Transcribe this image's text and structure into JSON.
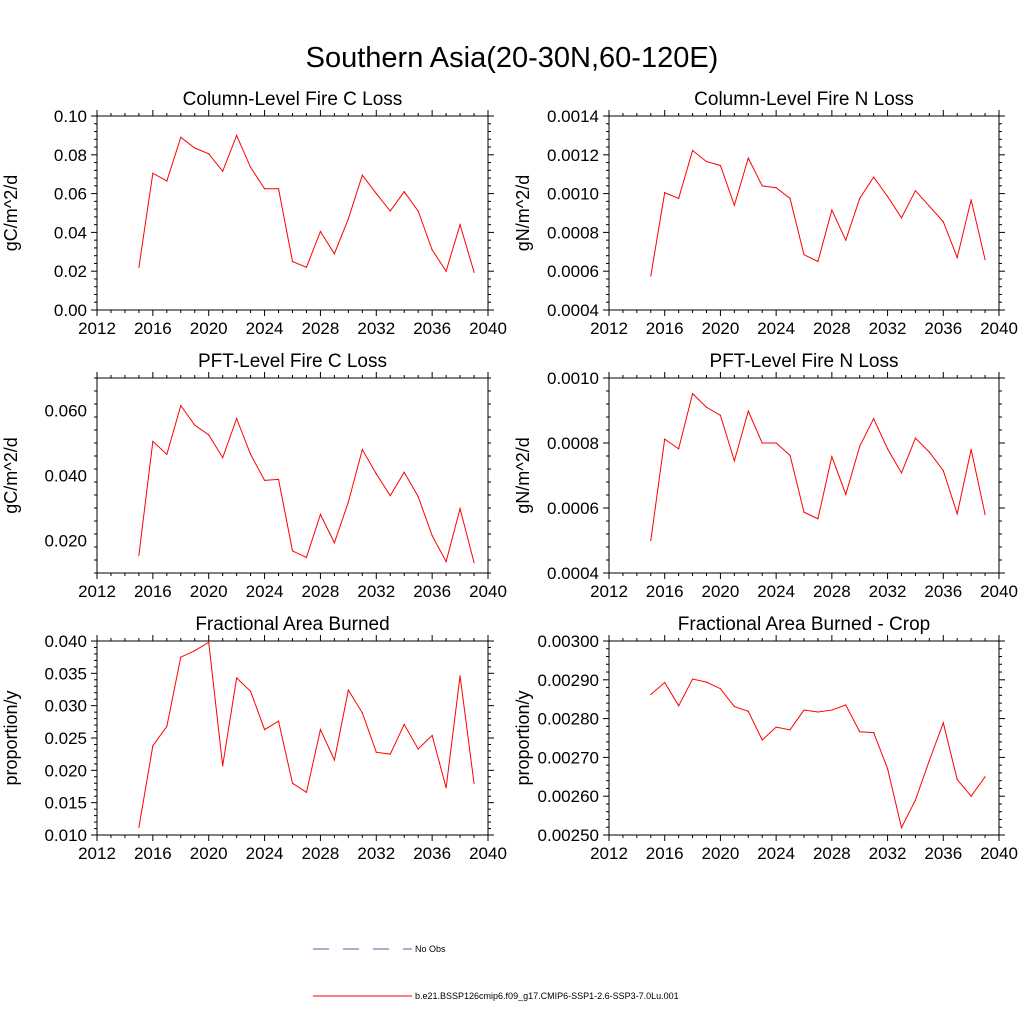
{
  "figure": {
    "title": "Southern Asia(20-30N,60-120E)"
  },
  "legend": {
    "items": [
      {
        "label": "No Obs",
        "color": "#5a5aa8",
        "style": "dashed"
      },
      {
        "label": "b.e21.BSSP126cmip6.f09_g17.CMIP6-SSP1-2.6-SSP3-7.0Lu.001",
        "color": "#ff0000",
        "style": "solid"
      }
    ]
  },
  "chart_data": [
    {
      "type": "line",
      "title": "Column-Level Fire C Loss",
      "ylabel": "gC/m^2/d",
      "xlim": [
        2012,
        2040
      ],
      "xticks": [
        2012,
        2016,
        2020,
        2024,
        2028,
        2032,
        2036,
        2040
      ],
      "ylim": [
        0.0,
        0.1
      ],
      "yticks": [
        0.0,
        0.02,
        0.04,
        0.06,
        0.08,
        0.1
      ],
      "ytick_labels": [
        "0.00",
        "0.02",
        "0.04",
        "0.06",
        "0.08",
        "0.10"
      ],
      "x": [
        2015,
        2016,
        2017,
        2018,
        2019,
        2020,
        2021,
        2022,
        2023,
        2024,
        2025,
        2026,
        2027,
        2028,
        2029,
        2030,
        2031,
        2032,
        2033,
        2034,
        2035,
        2036,
        2037,
        2038,
        2039
      ],
      "series": [
        {
          "color": "#ff0000",
          "values": [
            0.022,
            0.0705,
            0.0665,
            0.089,
            0.0835,
            0.0805,
            0.0715,
            0.09,
            0.0735,
            0.0625,
            0.0625,
            0.025,
            0.022,
            0.0405,
            0.029,
            0.047,
            0.0695,
            0.06,
            0.051,
            0.061,
            0.051,
            0.031,
            0.02,
            0.044,
            0.0195
          ]
        }
      ]
    },
    {
      "type": "line",
      "title": "Column-Level Fire N Loss",
      "ylabel": "gN/m^2/d",
      "xlim": [
        2012,
        2040
      ],
      "xticks": [
        2012,
        2016,
        2020,
        2024,
        2028,
        2032,
        2036,
        2040
      ],
      "ylim": [
        0.0004,
        0.0014
      ],
      "yticks": [
        0.0004,
        0.0006,
        0.0008,
        0.001,
        0.0012,
        0.0014
      ],
      "ytick_labels": [
        "0.0004",
        "0.0006",
        "0.0008",
        "0.0010",
        "0.0012",
        "0.0014"
      ],
      "x": [
        2015,
        2016,
        2017,
        2018,
        2019,
        2020,
        2021,
        2022,
        2023,
        2024,
        2025,
        2026,
        2027,
        2028,
        2029,
        2030,
        2031,
        2032,
        2033,
        2034,
        2035,
        2036,
        2037,
        2038,
        2039
      ],
      "series": [
        {
          "color": "#ff0000",
          "values": [
            0.000575,
            0.001005,
            0.000975,
            0.001222,
            0.001165,
            0.001145,
            0.00094,
            0.001183,
            0.00104,
            0.00103,
            0.000975,
            0.000685,
            0.00065,
            0.000915,
            0.00076,
            0.000975,
            0.001085,
            0.000985,
            0.000875,
            0.001015,
            0.000935,
            0.000855,
            0.00067,
            0.000968,
            0.00066
          ]
        }
      ]
    },
    {
      "type": "line",
      "title": "PFT-Level Fire C Loss",
      "ylabel": "gC/m^2/d",
      "xlim": [
        2012,
        2040
      ],
      "xticks": [
        2012,
        2016,
        2020,
        2024,
        2028,
        2032,
        2036,
        2040
      ],
      "ylim": [
        0.01,
        0.07
      ],
      "yticks": [
        0.02,
        0.04,
        0.06
      ],
      "ytick_labels": [
        "0.020",
        "0.040",
        "0.060"
      ],
      "x": [
        2015,
        2016,
        2017,
        2018,
        2019,
        2020,
        2021,
        2022,
        2023,
        2024,
        2025,
        2026,
        2027,
        2028,
        2029,
        2030,
        2031,
        2032,
        2033,
        2034,
        2035,
        2036,
        2037,
        2038,
        2039
      ],
      "series": [
        {
          "color": "#ff0000",
          "values": [
            0.0155,
            0.0505,
            0.0465,
            0.0615,
            0.0555,
            0.0525,
            0.0455,
            0.0575,
            0.0465,
            0.0385,
            0.0388,
            0.0168,
            0.0148,
            0.028,
            0.0193,
            0.0318,
            0.048,
            0.0405,
            0.0338,
            0.041,
            0.0335,
            0.0215,
            0.0135,
            0.0298,
            0.0132
          ]
        }
      ]
    },
    {
      "type": "line",
      "title": "PFT-Level Fire N Loss",
      "ylabel": "gN/m^2/d",
      "xlim": [
        2012,
        2040
      ],
      "xticks": [
        2012,
        2016,
        2020,
        2024,
        2028,
        2032,
        2036,
        2040
      ],
      "ylim": [
        0.0004,
        0.001
      ],
      "yticks": [
        0.0004,
        0.0006,
        0.0008,
        0.001
      ],
      "ytick_labels": [
        "0.0004",
        "0.0006",
        "0.0008",
        "0.0010"
      ],
      "x": [
        2015,
        2016,
        2017,
        2018,
        2019,
        2020,
        2021,
        2022,
        2023,
        2024,
        2025,
        2026,
        2027,
        2028,
        2029,
        2030,
        2031,
        2032,
        2033,
        2034,
        2035,
        2036,
        2037,
        2038,
        2039
      ],
      "series": [
        {
          "color": "#ff0000",
          "values": [
            0.0005,
            0.000812,
            0.000782,
            0.000952,
            0.00091,
            0.000885,
            0.000745,
            0.000898,
            0.0008,
            0.0008,
            0.000762,
            0.000587,
            0.000567,
            0.000758,
            0.000642,
            0.00079,
            0.000875,
            0.000782,
            0.000708,
            0.000815,
            0.000772,
            0.000715,
            0.000582,
            0.00078,
            0.00058
          ]
        }
      ]
    },
    {
      "type": "line",
      "title": "Fractional Area Burned",
      "ylabel": "proportion/y",
      "xlim": [
        2012,
        2040
      ],
      "xticks": [
        2012,
        2016,
        2020,
        2024,
        2028,
        2032,
        2036,
        2040
      ],
      "ylim": [
        0.01,
        0.04
      ],
      "yticks": [
        0.01,
        0.015,
        0.02,
        0.025,
        0.03,
        0.035,
        0.04
      ],
      "ytick_labels": [
        "0.010",
        "0.015",
        "0.020",
        "0.025",
        "0.030",
        "0.035",
        "0.040"
      ],
      "x": [
        2015,
        2016,
        2017,
        2018,
        2019,
        2020,
        2021,
        2022,
        2023,
        2024,
        2025,
        2026,
        2027,
        2028,
        2029,
        2030,
        2031,
        2032,
        2033,
        2034,
        2035,
        2036,
        2037,
        2038,
        2039
      ],
      "series": [
        {
          "color": "#ff0000",
          "values": [
            0.0112,
            0.0238,
            0.0268,
            0.0375,
            0.0385,
            0.0398,
            0.0207,
            0.0343,
            0.0322,
            0.0263,
            0.0276,
            0.018,
            0.0166,
            0.0263,
            0.0216,
            0.0324,
            0.0289,
            0.0228,
            0.0225,
            0.0271,
            0.0233,
            0.0254,
            0.0173,
            0.0346,
            0.018
          ]
        }
      ]
    },
    {
      "type": "line",
      "title": "Fractional Area Burned - Crop",
      "ylabel": "proportion/y",
      "xlim": [
        2012,
        2040
      ],
      "xticks": [
        2012,
        2016,
        2020,
        2024,
        2028,
        2032,
        2036,
        2040
      ],
      "ylim": [
        0.0025,
        0.003
      ],
      "yticks": [
        0.0025,
        0.0026,
        0.0027,
        0.0028,
        0.0029,
        0.003
      ],
      "ytick_labels": [
        "0.00250",
        "0.00260",
        "0.00270",
        "0.00280",
        "0.00290",
        "0.00300"
      ],
      "x": [
        2015,
        2016,
        2017,
        2018,
        2019,
        2020,
        2021,
        2022,
        2023,
        2024,
        2025,
        2026,
        2027,
        2028,
        2029,
        2030,
        2031,
        2032,
        2033,
        2034,
        2035,
        2036,
        2037,
        2038,
        2039
      ],
      "series": [
        {
          "color": "#ff0000",
          "values": [
            0.002862,
            0.002893,
            0.002833,
            0.002902,
            0.002894,
            0.002877,
            0.002831,
            0.002819,
            0.002745,
            0.002778,
            0.002771,
            0.002822,
            0.002817,
            0.002822,
            0.002835,
            0.002766,
            0.002764,
            0.002671,
            0.002519,
            0.00259,
            0.002692,
            0.002789,
            0.002643,
            0.0026,
            0.00265
          ]
        }
      ]
    }
  ]
}
